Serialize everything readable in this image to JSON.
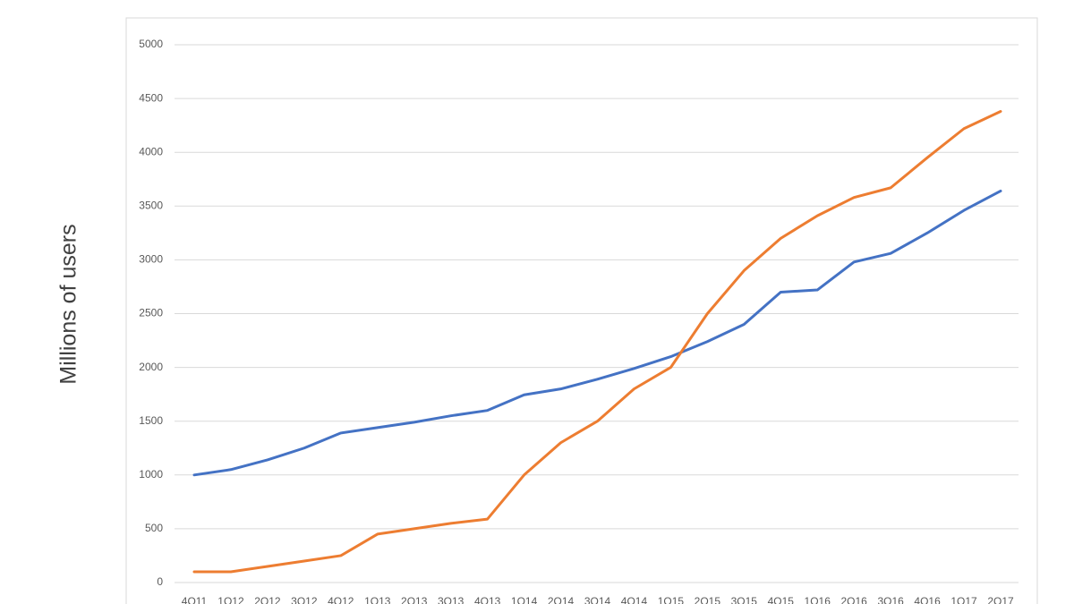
{
  "chart_data": {
    "type": "line",
    "ylabel": "Millions of users",
    "categories": [
      "4Q11",
      "1Q12",
      "2Q12",
      "3Q12",
      "4Q12",
      "1Q13",
      "2Q13",
      "3Q13",
      "4Q13",
      "1Q14",
      "2Q14",
      "3Q14",
      "4Q14",
      "1Q15",
      "2Q15",
      "3Q15",
      "4Q15",
      "1Q16",
      "2Q16",
      "3Q16",
      "4Q16",
      "1Q17",
      "2Q17"
    ],
    "series": [
      {
        "color": "#4472c4",
        "values": [
          1000,
          1050,
          1140,
          1250,
          1390,
          1440,
          1490,
          1550,
          1600,
          1745,
          1800,
          1890,
          1990,
          2100,
          2240,
          2400,
          2700,
          2720,
          2980,
          3060,
          3250,
          3460,
          3640
        ]
      },
      {
        "color": "#ed7d31",
        "values": [
          100,
          100,
          150,
          200,
          250,
          450,
          500,
          550,
          590,
          1000,
          1300,
          1500,
          1800,
          2000,
          2500,
          2900,
          3200,
          3410,
          3580,
          3670,
          3950,
          4220,
          4380
        ]
      }
    ],
    "ylim": [
      0,
      5000
    ],
    "yticks": [
      0,
      500,
      1000,
      1500,
      2000,
      2500,
      3000,
      3500,
      4000,
      4500,
      5000
    ],
    "grid": true
  }
}
